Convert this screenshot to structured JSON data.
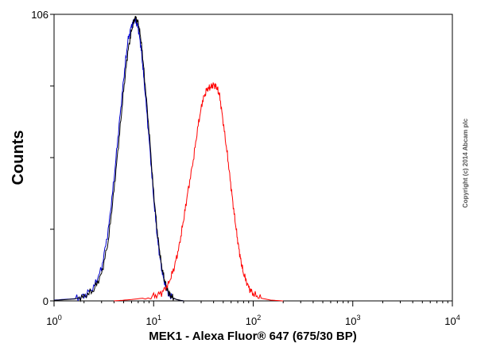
{
  "chart_data": {
    "type": "line",
    "title": "",
    "xlabel": "MEK1 - Alexa Fluor® 647 (675/30 BP)",
    "ylabel": "Counts",
    "x_scale": "log",
    "xlim": [
      1,
      10000
    ],
    "ylim": [
      0,
      106
    ],
    "x_ticks": [
      {
        "base": "10",
        "exp": "0"
      },
      {
        "base": "10",
        "exp": "1"
      },
      {
        "base": "10",
        "exp": "2"
      },
      {
        "base": "10",
        "exp": "3"
      },
      {
        "base": "10",
        "exp": "4"
      }
    ],
    "y_ticks": [
      "0",
      "106"
    ],
    "grid": false,
    "legend": "none",
    "series": [
      {
        "color": "#0000cc",
        "x": [
          1.0,
          1.6,
          2.0,
          2.5,
          3.0,
          3.5,
          4.0,
          4.5,
          5.0,
          5.5,
          6.0,
          6.5,
          7.0,
          7.5,
          8.0,
          9.0,
          10.0,
          11.0,
          12.0,
          13.0,
          14.0,
          15.0,
          17.0,
          20.0
        ],
        "y": [
          0.3,
          0.8,
          1.8,
          5.0,
          12.0,
          26.0,
          45.0,
          65.0,
          82.0,
          96.0,
          102.0,
          104.0,
          101.0,
          93.0,
          82.0,
          60.0,
          38.0,
          22.0,
          12.0,
          6.0,
          3.0,
          1.5,
          0.5,
          0.0
        ]
      },
      {
        "color": "#000000",
        "x": [
          1.0,
          1.6,
          2.0,
          2.5,
          3.0,
          3.5,
          4.0,
          4.5,
          5.0,
          5.5,
          6.0,
          6.5,
          7.0,
          7.5,
          8.0,
          9.0,
          10.0,
          11.0,
          12.0,
          13.0,
          14.0,
          15.0,
          17.0,
          20.0
        ],
        "y": [
          0.2,
          0.7,
          1.5,
          4.0,
          10.0,
          22.0,
          41.0,
          60.0,
          78.0,
          92.0,
          100.0,
          105.0,
          103.0,
          96.0,
          85.0,
          63.0,
          40.0,
          24.0,
          13.0,
          7.0,
          3.5,
          1.5,
          0.5,
          0.0
        ]
      },
      {
        "color": "#ff0000",
        "x": [
          4.0,
          6.0,
          10.0,
          12.0,
          14.0,
          16.0,
          18.0,
          20.0,
          22.0,
          25.0,
          28.0,
          31.0,
          34.0,
          37.0,
          40.0,
          43.0,
          46.0,
          50.0,
          55.0,
          60.0,
          65.0,
          70.0,
          75.0,
          80.0,
          90.0,
          100.0,
          120.0,
          150.0,
          200.0
        ],
        "y": [
          0.0,
          0.5,
          1.5,
          3.0,
          6.0,
          12.0,
          20.0,
          30.0,
          40.0,
          52.0,
          65.0,
          74.0,
          78.0,
          79.0,
          80.0,
          79.0,
          76.0,
          66.0,
          54.0,
          42.0,
          31.0,
          22.0,
          15.0,
          10.0,
          5.0,
          2.5,
          1.0,
          0.3,
          0.0
        ]
      }
    ]
  },
  "copyright": "Copyright (c) 2014 Abcam plc"
}
